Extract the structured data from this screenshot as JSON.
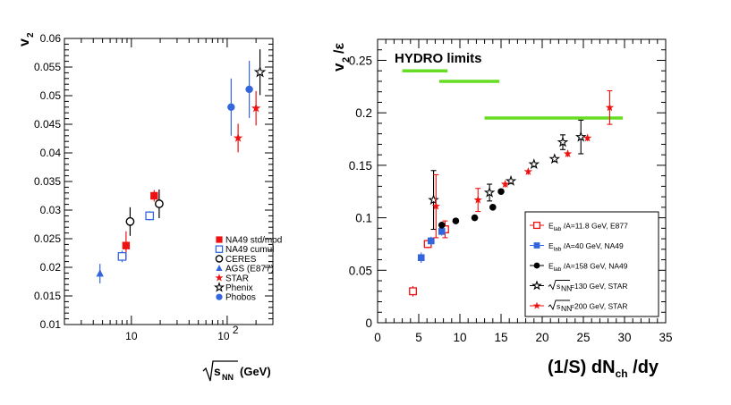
{
  "chart_data": [
    {
      "type": "scatter",
      "xscale": "log",
      "xlim": [
        2,
        300
      ],
      "ylim": [
        0.01,
        0.06
      ],
      "yticks": [
        "0.01",
        "0.015",
        "0.02",
        "0.025",
        "0.03",
        "0.035",
        "0.04",
        "0.045",
        "0.05",
        "0.055",
        "0.06"
      ],
      "xtick_labels": [
        {
          "value": 10,
          "label": "10"
        },
        {
          "value": 100,
          "label": "10",
          "exponent": "2"
        }
      ],
      "ylabel": {
        "main": "v",
        "sub": "2"
      },
      "xlabel": {
        "prefix": "s",
        "sub": "NN",
        "suffix": "(GeV)"
      },
      "grid": false,
      "legend_position": "bottom-right",
      "series": [
        {
          "name": "NA49 std/mod",
          "marker": "square-filled",
          "color": "#ee1111",
          "points": [
            {
              "x": 8.8,
              "y": 0.0238,
              "err": 0.0025
            },
            {
              "x": 17.3,
              "y": 0.0325,
              "err": 0.001
            }
          ]
        },
        {
          "name": "NA49 cumul",
          "marker": "square-open",
          "color": "#3366dd",
          "points": [
            {
              "x": 8.0,
              "y": 0.0219,
              "err": 0.001
            },
            {
              "x": 15.5,
              "y": 0.029,
              "err": 0.0008
            }
          ]
        },
        {
          "name": "CERES",
          "marker": "circle-open",
          "color": "#000000",
          "points": [
            {
              "x": 9.7,
              "y": 0.028,
              "err": 0.0025
            },
            {
              "x": 19.5,
              "y": 0.0311,
              "err": 0.0025
            }
          ]
        },
        {
          "name": "AGS (E877)",
          "marker": "triangle-filled",
          "color": "#3366dd",
          "points": [
            {
              "x": 4.7,
              "y": 0.0189,
              "err": 0.0017
            }
          ]
        },
        {
          "name": "STAR",
          "marker": "star-filled",
          "color": "#ee1111",
          "points": [
            {
              "x": 130,
              "y": 0.0426,
              "err": 0.0025
            },
            {
              "x": 200,
              "y": 0.0478,
              "err": 0.003
            }
          ]
        },
        {
          "name": "Phenix",
          "marker": "star-open",
          "color": "#000000",
          "points": [
            {
              "x": 220,
              "y": 0.0541,
              "err": 0.004
            }
          ]
        },
        {
          "name": "Phobos",
          "marker": "circle-filled",
          "color": "#3366dd",
          "points": [
            {
              "x": 110,
              "y": 0.048,
              "err": 0.005
            },
            {
              "x": 170,
              "y": 0.0511,
              "err": 0.005
            }
          ]
        }
      ]
    },
    {
      "type": "scatter",
      "xlim": [
        0,
        35
      ],
      "ylim": [
        0,
        0.27
      ],
      "xticks": [
        "0",
        "5",
        "10",
        "15",
        "20",
        "25",
        "30",
        "35"
      ],
      "yticks": [
        "0",
        "0.05",
        "0.1",
        "0.15",
        "0.2",
        "0.25"
      ],
      "ylabel": {
        "main": "v",
        "sub": "2",
        "suffix": "/ε"
      },
      "xlabel": {
        "pre": "(1/S) dN",
        "sub": "ch",
        "post": " /dy"
      },
      "grid": false,
      "legend_position": "bottom-right",
      "annotations": [
        {
          "text": "HYDRO  limits",
          "color": "#66dd22"
        }
      ],
      "hydro_limits": {
        "color": "#66dd22",
        "segments": [
          {
            "x": [
              3,
              8.5
            ],
            "y": 0.24
          },
          {
            "x": [
              7.5,
              14.8
            ],
            "y": 0.23
          },
          {
            "x": [
              13,
              29.8
            ],
            "y": 0.195
          }
        ]
      },
      "series": [
        {
          "name": "E_lab/A=11.8 GeV, E877",
          "legend": {
            "pre": "E",
            "sub": "lab",
            "post": " /A=11.8 GeV, E877"
          },
          "marker": "square-open",
          "color": "#ee1111",
          "points": [
            {
              "x": 4.3,
              "y": 0.03,
              "err": 0.005
            },
            {
              "x": 6.1,
              "y": 0.075,
              "err": 0.004
            },
            {
              "x": 8.2,
              "y": 0.089,
              "err": 0.008
            }
          ]
        },
        {
          "name": "E_lab/A=40 GeV, NA49",
          "legend": {
            "pre": "E",
            "sub": "lab",
            "post": " /A=40 GeV, NA49"
          },
          "marker": "square-filled",
          "color": "#3366dd",
          "points": [
            {
              "x": 5.3,
              "y": 0.062,
              "err": 0.005
            },
            {
              "x": 6.5,
              "y": 0.078,
              "err": 0.004
            },
            {
              "x": 7.8,
              "y": 0.087,
              "err": 0.004
            }
          ]
        },
        {
          "name": "E_lab/A=158 GeV, NA49",
          "legend": {
            "pre": "E",
            "sub": "lab",
            "post": " /A=158 GeV, NA49"
          },
          "marker": "circle-filled",
          "color": "#000000",
          "points": [
            {
              "x": 7.8,
              "y": 0.093,
              "err": 0.003
            },
            {
              "x": 9.5,
              "y": 0.097,
              "err": 0.002
            },
            {
              "x": 11.8,
              "y": 0.1,
              "err": 0.002
            },
            {
              "x": 14.0,
              "y": 0.11,
              "err": 0.002
            },
            {
              "x": 15.0,
              "y": 0.125,
              "err": 0.002
            }
          ]
        },
        {
          "name": "√sNN=130 GeV, STAR",
          "legend": {
            "pre": "√",
            "sub": "",
            "post": "=130 GeV, STAR"
          },
          "marker": "star-open",
          "color": "#000000",
          "points": [
            {
              "x": 6.8,
              "y": 0.117,
              "err": 0.028
            },
            {
              "x": 13.6,
              "y": 0.124,
              "err": 0.008
            },
            {
              "x": 16.2,
              "y": 0.135,
              "err": 0.003
            },
            {
              "x": 19.0,
              "y": 0.151,
              "err": 0.003
            },
            {
              "x": 21.5,
              "y": 0.156,
              "err": 0.003
            },
            {
              "x": 22.5,
              "y": 0.172,
              "err": 0.007
            },
            {
              "x": 24.7,
              "y": 0.177,
              "err": 0.016
            }
          ]
        },
        {
          "name": "√sNN=200 GeV, STAR",
          "legend": {
            "pre": "√",
            "sub": "",
            "post": "=200 GeV, STAR"
          },
          "marker": "star-filled",
          "color": "#ee1111",
          "points": [
            {
              "x": 7.1,
              "y": 0.111,
              "err": 0.03
            },
            {
              "x": 12.2,
              "y": 0.117,
              "err": 0.011
            },
            {
              "x": 15.5,
              "y": 0.132,
              "err": 0.003
            },
            {
              "x": 18.3,
              "y": 0.144,
              "err": 0.003
            },
            {
              "x": 23.1,
              "y": 0.161,
              "err": 0.003
            },
            {
              "x": 25.5,
              "y": 0.176,
              "err": 0.003
            },
            {
              "x": 28.2,
              "y": 0.205,
              "err": 0.016
            }
          ]
        }
      ],
      "legend_sqrt_sub": "NN"
    }
  ]
}
